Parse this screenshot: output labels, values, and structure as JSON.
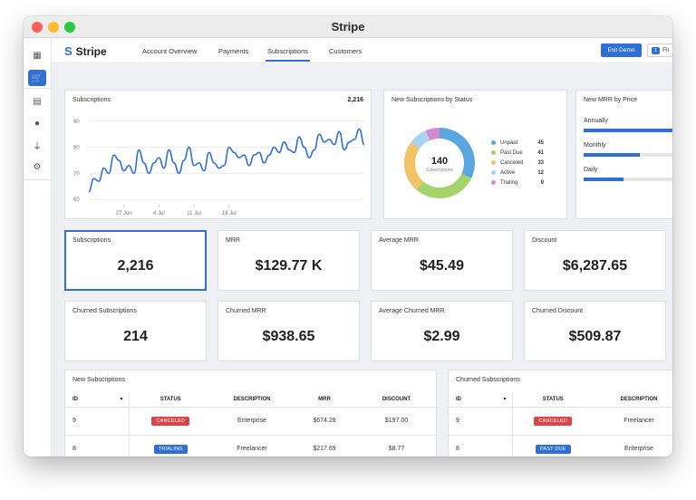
{
  "window": {
    "title": "Stripe"
  },
  "rail": [
    {
      "name": "grid-icon",
      "glyph": "▦",
      "active": false
    },
    {
      "name": "cart-icon",
      "glyph": "🛒",
      "active": true
    },
    {
      "name": "document-icon",
      "glyph": "▤",
      "active": false
    },
    {
      "name": "user-icon",
      "glyph": "●",
      "active": false
    },
    {
      "name": "plug-icon",
      "glyph": "⏚",
      "active": false
    },
    {
      "name": "gear-icon",
      "glyph": "⚙",
      "active": false
    }
  ],
  "nav": {
    "brand_glyph": "S",
    "brand": "Stripe",
    "tabs": [
      {
        "label": "Account Overview",
        "active": false
      },
      {
        "label": "Payments",
        "active": false
      },
      {
        "label": "Subscriptions",
        "active": true
      },
      {
        "label": "Customers",
        "active": false
      }
    ],
    "exit_demo": "Exit Demo",
    "filter_count": "1",
    "filter_label": "Fil"
  },
  "subs_chart": {
    "title": "Subscriptions",
    "total": "2,216",
    "chart_data": {
      "type": "line",
      "title": "Subscriptions",
      "x_ticks": [
        "27 Jun",
        "4 Jul",
        "11 Jul",
        "18 Jul"
      ],
      "y_ticks": [
        60,
        70,
        80,
        90
      ],
      "ylim": [
        58,
        92
      ],
      "x_start": "2020-06-20",
      "y": [
        63,
        68,
        67,
        72,
        70,
        77,
        75,
        71,
        73,
        70,
        79,
        74,
        70,
        74,
        76,
        72,
        79,
        74,
        70,
        75,
        80,
        73,
        74,
        71,
        78,
        74,
        72,
        73,
        80,
        78,
        76,
        77,
        73,
        77,
        78,
        74,
        77,
        80,
        78,
        82,
        79,
        78,
        84,
        80,
        76,
        79,
        85,
        82,
        83,
        81,
        86,
        79,
        82,
        83,
        87,
        81
      ]
    }
  },
  "donut": {
    "title": "New Subscriptions by Status",
    "center_value": "140",
    "center_label": "Subscriptions",
    "chart_data": {
      "type": "pie",
      "title": "New Subscriptions by Status",
      "labels": [
        "Unpaid",
        "Past Due",
        "Canceled",
        "Active",
        "Trialing"
      ],
      "values": [
        45,
        41,
        33,
        12,
        9
      ],
      "colors": [
        "#5aa7df",
        "#a3d36a",
        "#f1c266",
        "#a9d3f1",
        "#d48ad0"
      ]
    },
    "legend": [
      {
        "label": "Unpaid",
        "value": "45",
        "color": "#5aa7df"
      },
      {
        "label": "Past Due",
        "value": "41",
        "color": "#a3d36a"
      },
      {
        "label": "Canceled",
        "value": "33",
        "color": "#f1c266"
      },
      {
        "label": "Active",
        "value": "12",
        "color": "#a9d3f1"
      },
      {
        "label": "Trialing",
        "value": "9",
        "color": "#d48ad0"
      }
    ]
  },
  "mrr_price": {
    "title": "New MRR by Price",
    "bars": [
      {
        "label": "Annually",
        "fraction": 1.0
      },
      {
        "label": "Monthly",
        "fraction": 0.56
      },
      {
        "label": "Daily",
        "fraction": 0.4
      }
    ]
  },
  "kpis": [
    {
      "label": "Subscriptions",
      "value": "2,216",
      "selected": true
    },
    {
      "label": "MRR",
      "value": "$129.77 K",
      "selected": false
    },
    {
      "label": "Average MRR",
      "value": "$45.49",
      "selected": false
    },
    {
      "label": "Discount",
      "value": "$6,287.65",
      "selected": false
    },
    {
      "label": "Churned Subscriptions",
      "value": "214",
      "selected": false
    },
    {
      "label": "Churned MRR",
      "value": "$938.65",
      "selected": false
    },
    {
      "label": "Average Churned MRR",
      "value": "$2.99",
      "selected": false
    },
    {
      "label": "Churned Discount",
      "value": "$509.87",
      "selected": false
    }
  ],
  "new_subs": {
    "title": "New Subscriptions",
    "headers": [
      "ID",
      "STATUS",
      "DESCRIPTION",
      "MRR",
      "DISCOUNT"
    ],
    "sort_glyph": "▾",
    "rows": [
      {
        "id": "9",
        "status": "CANCELED",
        "status_color": "#d9464a",
        "description": "Enterprise",
        "mrr": "$674.28",
        "discount": "$197.00"
      },
      {
        "id": "8",
        "status": "TRIALING",
        "status_color": "#2f6fd6",
        "description": "Freelancer",
        "mrr": "$217.69",
        "discount": "$8.77"
      },
      {
        "id": "",
        "status": "",
        "status_color": "#d9464a",
        "description": "",
        "mrr": "",
        "discount": ""
      }
    ]
  },
  "churned_subs": {
    "title": "Churned Subscriptions",
    "headers": [
      "ID",
      "STATUS",
      "DESCRIPTION"
    ],
    "sort_glyph": "▾",
    "rows": [
      {
        "id": "9",
        "status": "CANCELED",
        "status_color": "#d9464a",
        "description": "Freelancer"
      },
      {
        "id": "8",
        "status": "PAST DUE",
        "status_color": "#2f6fd6",
        "description": "Enterprise"
      },
      {
        "id": "",
        "status": "",
        "status_color": "#f1c266",
        "description": ""
      }
    ]
  }
}
